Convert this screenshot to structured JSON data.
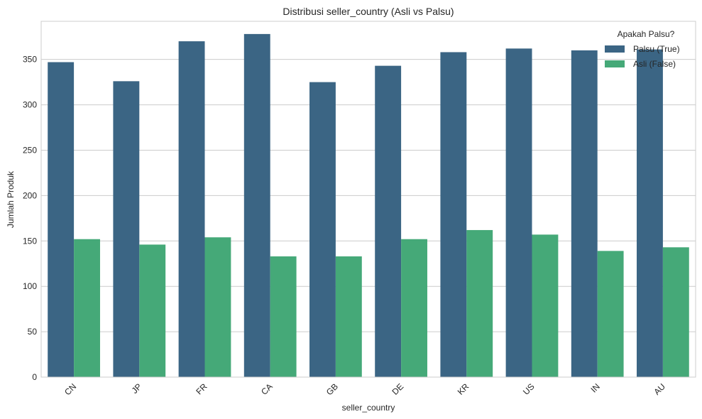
{
  "chart_data": {
    "type": "bar",
    "title": "Distribusi seller_country (Asli vs Palsu)",
    "xlabel": "seller_country",
    "ylabel": "Jumlah Produk",
    "ylim": [
      0,
      392
    ],
    "yticks": [
      0,
      50,
      100,
      150,
      200,
      250,
      300,
      350
    ],
    "categories": [
      "CN",
      "JP",
      "FR",
      "CA",
      "GB",
      "DE",
      "KR",
      "US",
      "IN",
      "AU"
    ],
    "series": [
      {
        "name": "Palsu (True)",
        "color": "#3b6584",
        "values": [
          347,
          326,
          370,
          378,
          325,
          343,
          358,
          362,
          360,
          361
        ]
      },
      {
        "name": "Asli (False)",
        "color": "#45a978",
        "values": [
          152,
          146,
          154,
          133,
          133,
          152,
          162,
          157,
          139,
          143
        ]
      }
    ],
    "legend": {
      "title": "Apakah Palsu?",
      "position": "top-right"
    },
    "grid": true
  }
}
